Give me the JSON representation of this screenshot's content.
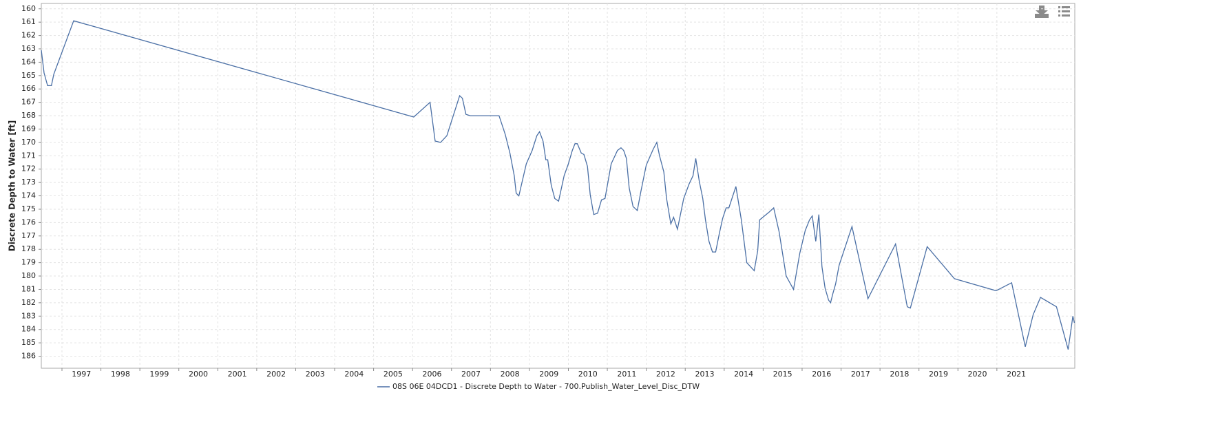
{
  "chart_data": {
    "type": "line",
    "y_label": "Discrete Depth to Water [ft]",
    "y_inverted": true,
    "grid": true,
    "legend": "bottom",
    "xlim": [
      1996.47,
      2023.0
    ],
    "xticks": [
      1997,
      1998,
      1999,
      2000,
      2001,
      2002,
      2003,
      2004,
      2005,
      2006,
      2007,
      2008,
      2009,
      2010,
      2011,
      2012,
      2013,
      2014,
      2015,
      2016,
      2017,
      2018,
      2019,
      2020,
      2021
    ],
    "ylim": [
      159.6,
      186.9
    ],
    "yticks": [
      160,
      161,
      162,
      163,
      164,
      165,
      166,
      167,
      168,
      169,
      170,
      171,
      172,
      173,
      174,
      175,
      176,
      177,
      178,
      179,
      180,
      181,
      182,
      183,
      184,
      185,
      186
    ],
    "x": [
      1996.47,
      1996.54,
      1996.63,
      1996.73,
      1996.79,
      1997.3,
      2006.03,
      2006.45,
      2006.58,
      2006.72,
      2006.88,
      2007.21,
      2007.28,
      2007.37,
      2007.48,
      2008.22,
      2008.38,
      2008.5,
      2008.61,
      2008.66,
      2008.73,
      2008.84,
      2008.92,
      2009.07,
      2009.19,
      2009.26,
      2009.35,
      2009.42,
      2009.47,
      2009.56,
      2009.65,
      2009.75,
      2009.89,
      2010.0,
      2010.1,
      2010.17,
      2010.23,
      2010.33,
      2010.4,
      2010.49,
      2010.56,
      2010.65,
      2010.75,
      2010.85,
      2010.94,
      2011.1,
      2011.26,
      2011.35,
      2011.42,
      2011.49,
      2011.56,
      2011.66,
      2011.77,
      2011.86,
      2012.0,
      2012.09,
      2012.18,
      2012.27,
      2012.34,
      2012.45,
      2012.52,
      2012.63,
      2012.7,
      2012.8,
      2012.96,
      2013.1,
      2013.2,
      2013.27,
      2013.36,
      2013.45,
      2013.52,
      2013.61,
      2013.7,
      2013.78,
      2013.87,
      2013.96,
      2014.05,
      2014.12,
      2014.3,
      2014.44,
      2014.58,
      2014.77,
      2014.86,
      2014.91,
      2015.16,
      2015.27,
      2015.41,
      2015.59,
      2015.78,
      2015.94,
      2016.08,
      2016.19,
      2016.26,
      2016.35,
      2016.43,
      2016.51,
      2016.59,
      2016.68,
      2016.73,
      2016.79,
      2016.86,
      2016.95,
      2017.28,
      2017.69,
      2018.4,
      2018.7,
      2018.78,
      2019.21,
      2019.91,
      2020.98,
      2021.38,
      2021.73,
      2021.93,
      2022.12,
      2022.53,
      2022.83,
      2022.95,
      2022.99
    ],
    "series": [
      {
        "name": "08S 06E 04DCD1 - Discrete Depth to Water - 700.Publish_Water_Level_Disc_DTW",
        "color": "#4a6fa5",
        "values": [
          163.1,
          164.8,
          165.75,
          165.75,
          164.9,
          160.9,
          168.1,
          167.0,
          169.9,
          170.0,
          169.5,
          166.5,
          166.7,
          167.9,
          168.0,
          168.0,
          169.4,
          170.8,
          172.5,
          173.8,
          174.0,
          172.6,
          171.6,
          170.6,
          169.5,
          169.2,
          169.9,
          171.3,
          171.3,
          173.2,
          174.2,
          174.4,
          172.5,
          171.6,
          170.6,
          170.1,
          170.1,
          170.8,
          170.9,
          171.8,
          173.9,
          175.4,
          175.3,
          174.3,
          174.2,
          171.6,
          170.6,
          170.4,
          170.6,
          171.2,
          173.4,
          174.8,
          175.1,
          173.7,
          171.7,
          171.1,
          170.5,
          170.0,
          171.0,
          172.2,
          174.2,
          176.1,
          175.6,
          176.5,
          174.2,
          173.1,
          172.5,
          171.2,
          172.9,
          174.2,
          175.8,
          177.4,
          178.2,
          178.2,
          176.9,
          175.7,
          174.9,
          174.9,
          173.3,
          175.8,
          179.0,
          179.6,
          178.1,
          175.8,
          175.2,
          174.9,
          176.7,
          180.0,
          181.0,
          178.3,
          176.6,
          175.8,
          175.5,
          177.4,
          175.4,
          179.3,
          180.9,
          181.8,
          182.0,
          181.3,
          180.6,
          179.2,
          176.3,
          181.7,
          177.6,
          182.3,
          182.4,
          177.8,
          180.2,
          181.1,
          180.5,
          185.3,
          182.9,
          181.6,
          182.3,
          185.5,
          183.0,
          183.5
        ]
      }
    ]
  }
}
